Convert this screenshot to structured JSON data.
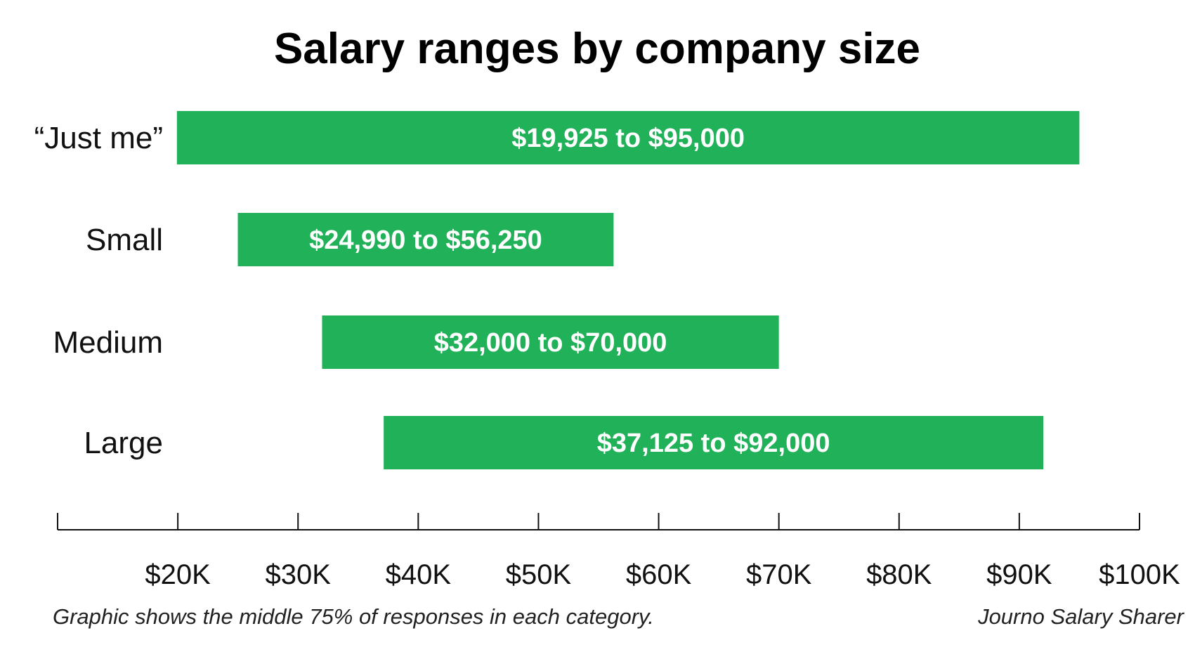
{
  "chart_data": {
    "type": "bar",
    "orientation": "horizontal-range",
    "title": "Salary ranges by company size",
    "categories": [
      "“Just me”",
      "Small",
      "Medium",
      "Large"
    ],
    "ranges": [
      {
        "low": 19925,
        "high": 95000,
        "label": "$19,925 to $95,000"
      },
      {
        "low": 24990,
        "high": 56250,
        "label": "$24,990 to $56,250"
      },
      {
        "low": 32000,
        "high": 70000,
        "label": "$32,000 to $70,000"
      },
      {
        "low": 37125,
        "high": 92000,
        "label": "$37,125 to $92,000"
      }
    ],
    "xlim": [
      10000,
      100000
    ],
    "x_ticks": [
      10000,
      20000,
      30000,
      40000,
      50000,
      60000,
      70000,
      80000,
      90000,
      100000
    ],
    "x_tick_labels": [
      "",
      "$20K",
      "$30K",
      "$40K",
      "$50K",
      "$60K",
      "$70K",
      "$80K",
      "$90K",
      "$100K"
    ],
    "xlabel": "",
    "ylabel": "",
    "grid": false,
    "legend": "none",
    "bar_color": "#21b159",
    "note": "Graphic shows the middle 75% of responses in each category.",
    "source": "Journo Salary Sharer"
  }
}
